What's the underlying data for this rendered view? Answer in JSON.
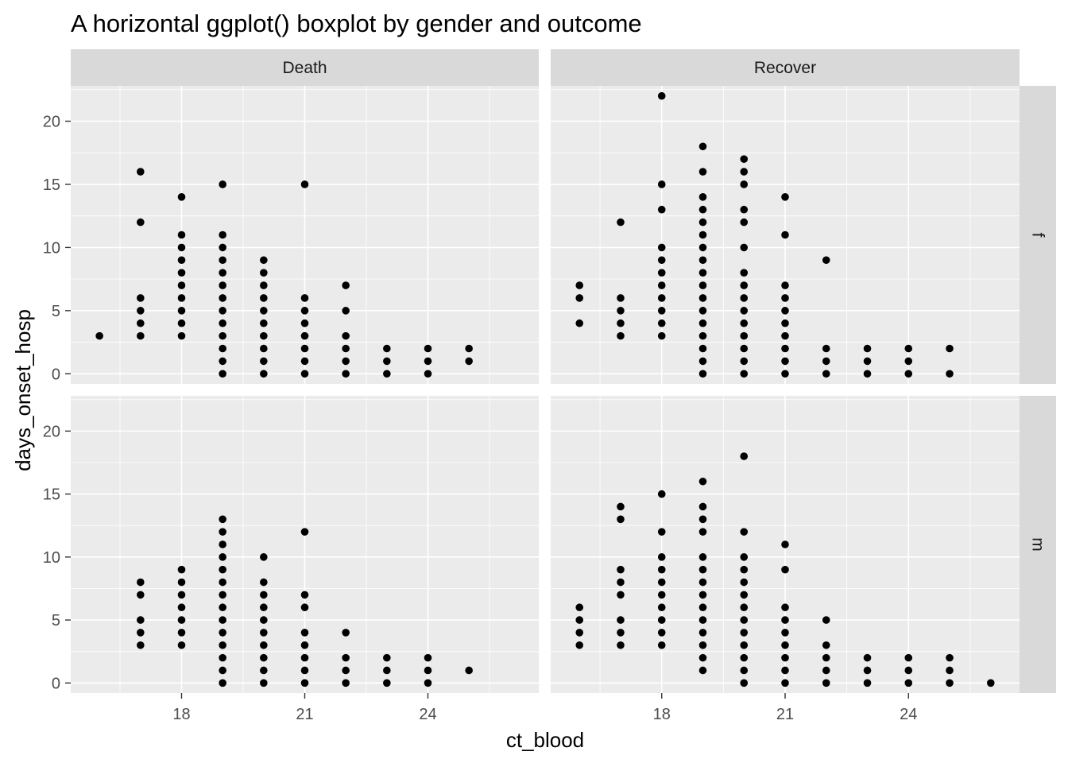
{
  "chart_data": {
    "type": "scatter",
    "title": "A horizontal ggplot() boxplot by gender and outcome",
    "xlabel": "ct_blood",
    "ylabel": "days_onset_hosp",
    "xlim": [
      15.3,
      26.7
    ],
    "ylim": [
      -0.8,
      22.8
    ],
    "x_ticks": [
      18,
      21,
      24
    ],
    "y_ticks": [
      0,
      5,
      10,
      15,
      20
    ],
    "grid": true,
    "facet_columns": [
      "Death",
      "Recover"
    ],
    "facet_rows": [
      "f",
      "m"
    ],
    "colors": {
      "panel_background": "#ebebeb",
      "strip_background": "#d9d9d9",
      "grid": "#ffffff",
      "point": "#000000",
      "tick_text": "#4d4d4d"
    },
    "panels": [
      {
        "column": "Death",
        "row": "f",
        "points": [
          [
            16,
            3
          ],
          [
            17,
            16
          ],
          [
            17,
            12
          ],
          [
            17,
            6
          ],
          [
            17,
            5
          ],
          [
            17,
            4
          ],
          [
            17,
            3
          ],
          [
            18,
            14
          ],
          [
            18,
            11
          ],
          [
            18,
            10
          ],
          [
            18,
            9
          ],
          [
            18,
            8
          ],
          [
            18,
            7
          ],
          [
            18,
            6
          ],
          [
            18,
            5
          ],
          [
            18,
            4
          ],
          [
            18,
            3
          ],
          [
            19,
            15
          ],
          [
            19,
            11
          ],
          [
            19,
            10
          ],
          [
            19,
            9
          ],
          [
            19,
            8
          ],
          [
            19,
            7
          ],
          [
            19,
            6
          ],
          [
            19,
            5
          ],
          [
            19,
            4
          ],
          [
            19,
            3
          ],
          [
            19,
            2
          ],
          [
            19,
            1
          ],
          [
            19,
            0
          ],
          [
            20,
            9
          ],
          [
            20,
            8
          ],
          [
            20,
            7
          ],
          [
            20,
            6
          ],
          [
            20,
            5
          ],
          [
            20,
            4
          ],
          [
            20,
            3
          ],
          [
            20,
            2
          ],
          [
            20,
            1
          ],
          [
            20,
            0
          ],
          [
            21,
            15
          ],
          [
            21,
            6
          ],
          [
            21,
            5
          ],
          [
            21,
            4
          ],
          [
            21,
            3
          ],
          [
            21,
            2
          ],
          [
            21,
            1
          ],
          [
            21,
            0
          ],
          [
            22,
            7
          ],
          [
            22,
            5
          ],
          [
            22,
            3
          ],
          [
            22,
            2
          ],
          [
            22,
            1
          ],
          [
            22,
            0
          ],
          [
            23,
            2
          ],
          [
            23,
            1
          ],
          [
            23,
            0
          ],
          [
            24,
            2
          ],
          [
            24,
            1
          ],
          [
            24,
            0
          ],
          [
            25,
            2
          ],
          [
            25,
            1
          ]
        ]
      },
      {
        "column": "Recover",
        "row": "f",
        "points": [
          [
            16,
            7
          ],
          [
            16,
            6
          ],
          [
            16,
            4
          ],
          [
            17,
            12
          ],
          [
            17,
            6
          ],
          [
            17,
            5
          ],
          [
            17,
            4
          ],
          [
            17,
            3
          ],
          [
            18,
            22
          ],
          [
            18,
            15
          ],
          [
            18,
            13
          ],
          [
            18,
            10
          ],
          [
            18,
            9
          ],
          [
            18,
            8
          ],
          [
            18,
            7
          ],
          [
            18,
            6
          ],
          [
            18,
            5
          ],
          [
            18,
            4
          ],
          [
            18,
            3
          ],
          [
            19,
            18
          ],
          [
            19,
            16
          ],
          [
            19,
            14
          ],
          [
            19,
            13
          ],
          [
            19,
            12
          ],
          [
            19,
            11
          ],
          [
            19,
            10
          ],
          [
            19,
            9
          ],
          [
            19,
            8
          ],
          [
            19,
            7
          ],
          [
            19,
            6
          ],
          [
            19,
            5
          ],
          [
            19,
            4
          ],
          [
            19,
            3
          ],
          [
            19,
            2
          ],
          [
            19,
            1
          ],
          [
            19,
            0
          ],
          [
            20,
            17
          ],
          [
            20,
            16
          ],
          [
            20,
            15
          ],
          [
            20,
            13
          ],
          [
            20,
            12
          ],
          [
            20,
            10
          ],
          [
            20,
            8
          ],
          [
            20,
            7
          ],
          [
            20,
            6
          ],
          [
            20,
            5
          ],
          [
            20,
            4
          ],
          [
            20,
            3
          ],
          [
            20,
            2
          ],
          [
            20,
            1
          ],
          [
            20,
            0
          ],
          [
            21,
            14
          ],
          [
            21,
            11
          ],
          [
            21,
            7
          ],
          [
            21,
            6
          ],
          [
            21,
            5
          ],
          [
            21,
            4
          ],
          [
            21,
            3
          ],
          [
            21,
            2
          ],
          [
            21,
            1
          ],
          [
            21,
            0
          ],
          [
            22,
            9
          ],
          [
            22,
            2
          ],
          [
            22,
            1
          ],
          [
            22,
            0
          ],
          [
            23,
            2
          ],
          [
            23,
            1
          ],
          [
            23,
            0
          ],
          [
            24,
            2
          ],
          [
            24,
            1
          ],
          [
            24,
            0
          ],
          [
            25,
            2
          ],
          [
            25,
            0
          ]
        ]
      },
      {
        "column": "Death",
        "row": "m",
        "points": [
          [
            17,
            8
          ],
          [
            17,
            7
          ],
          [
            17,
            5
          ],
          [
            17,
            4
          ],
          [
            17,
            3
          ],
          [
            18,
            9
          ],
          [
            18,
            8
          ],
          [
            18,
            7
          ],
          [
            18,
            6
          ],
          [
            18,
            5
          ],
          [
            18,
            4
          ],
          [
            18,
            3
          ],
          [
            19,
            13
          ],
          [
            19,
            12
          ],
          [
            19,
            11
          ],
          [
            19,
            10
          ],
          [
            19,
            9
          ],
          [
            19,
            8
          ],
          [
            19,
            7
          ],
          [
            19,
            6
          ],
          [
            19,
            5
          ],
          [
            19,
            4
          ],
          [
            19,
            3
          ],
          [
            19,
            2
          ],
          [
            19,
            1
          ],
          [
            19,
            0
          ],
          [
            20,
            10
          ],
          [
            20,
            8
          ],
          [
            20,
            7
          ],
          [
            20,
            6
          ],
          [
            20,
            5
          ],
          [
            20,
            4
          ],
          [
            20,
            3
          ],
          [
            20,
            2
          ],
          [
            20,
            1
          ],
          [
            20,
            0
          ],
          [
            21,
            12
          ],
          [
            21,
            7
          ],
          [
            21,
            6
          ],
          [
            21,
            4
          ],
          [
            21,
            3
          ],
          [
            21,
            2
          ],
          [
            21,
            1
          ],
          [
            21,
            0
          ],
          [
            22,
            4
          ],
          [
            22,
            2
          ],
          [
            22,
            1
          ],
          [
            22,
            0
          ],
          [
            23,
            2
          ],
          [
            23,
            1
          ],
          [
            23,
            0
          ],
          [
            24,
            2
          ],
          [
            24,
            1
          ],
          [
            24,
            0
          ],
          [
            25,
            1
          ]
        ]
      },
      {
        "column": "Recover",
        "row": "m",
        "points": [
          [
            16,
            6
          ],
          [
            16,
            5
          ],
          [
            16,
            4
          ],
          [
            16,
            3
          ],
          [
            17,
            14
          ],
          [
            17,
            13
          ],
          [
            17,
            9
          ],
          [
            17,
            8
          ],
          [
            17,
            7
          ],
          [
            17,
            5
          ],
          [
            17,
            4
          ],
          [
            17,
            3
          ],
          [
            18,
            15
          ],
          [
            18,
            12
          ],
          [
            18,
            10
          ],
          [
            18,
            9
          ],
          [
            18,
            8
          ],
          [
            18,
            7
          ],
          [
            18,
            6
          ],
          [
            18,
            5
          ],
          [
            18,
            4
          ],
          [
            18,
            3
          ],
          [
            19,
            16
          ],
          [
            19,
            14
          ],
          [
            19,
            13
          ],
          [
            19,
            12
          ],
          [
            19,
            10
          ],
          [
            19,
            9
          ],
          [
            19,
            8
          ],
          [
            19,
            7
          ],
          [
            19,
            6
          ],
          [
            19,
            5
          ],
          [
            19,
            4
          ],
          [
            19,
            3
          ],
          [
            19,
            2
          ],
          [
            19,
            1
          ],
          [
            20,
            18
          ],
          [
            20,
            12
          ],
          [
            20,
            10
          ],
          [
            20,
            9
          ],
          [
            20,
            8
          ],
          [
            20,
            7
          ],
          [
            20,
            6
          ],
          [
            20,
            5
          ],
          [
            20,
            4
          ],
          [
            20,
            3
          ],
          [
            20,
            2
          ],
          [
            20,
            1
          ],
          [
            20,
            0
          ],
          [
            21,
            11
          ],
          [
            21,
            9
          ],
          [
            21,
            6
          ],
          [
            21,
            5
          ],
          [
            21,
            4
          ],
          [
            21,
            3
          ],
          [
            21,
            2
          ],
          [
            21,
            1
          ],
          [
            21,
            0
          ],
          [
            22,
            5
          ],
          [
            22,
            3
          ],
          [
            22,
            2
          ],
          [
            22,
            1
          ],
          [
            22,
            0
          ],
          [
            23,
            2
          ],
          [
            23,
            1
          ],
          [
            23,
            0
          ],
          [
            24,
            2
          ],
          [
            24,
            1
          ],
          [
            24,
            0
          ],
          [
            25,
            2
          ],
          [
            25,
            1
          ],
          [
            25,
            0
          ],
          [
            26,
            0
          ]
        ]
      }
    ]
  }
}
